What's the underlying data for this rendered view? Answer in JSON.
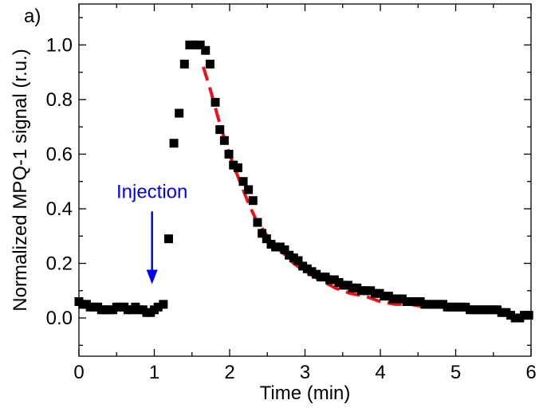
{
  "chart_data": {
    "type": "scatter",
    "panel_label": "a)",
    "xlabel": "Time (min)",
    "ylabel": "Normalized MPQ-1 signal (r.u.)",
    "xlim": [
      0,
      6
    ],
    "ylim": [
      -0.14,
      1.15
    ],
    "xticks": [
      0,
      1,
      2,
      3,
      4,
      5,
      6
    ],
    "xtick_labels": [
      "0",
      "1",
      "2",
      "3",
      "4",
      "5",
      "6"
    ],
    "yticks": [
      0.0,
      0.2,
      0.4,
      0.6,
      0.8,
      1.0
    ],
    "ytick_labels": [
      "0.0",
      "0.2",
      "0.4",
      "0.6",
      "0.8",
      "1.0"
    ],
    "grid": false,
    "series": [
      {
        "kind": "markers",
        "marker": "square",
        "color": "#000000",
        "x": [
          0.0,
          0.05,
          0.1,
          0.15,
          0.2,
          0.25,
          0.3,
          0.35,
          0.4,
          0.45,
          0.5,
          0.55,
          0.6,
          0.65,
          0.7,
          0.75,
          0.8,
          0.85,
          0.9,
          0.95,
          1.0,
          1.05,
          1.12,
          1.19,
          1.26,
          1.33,
          1.4,
          1.47,
          1.54,
          1.61,
          1.68,
          1.74,
          1.81,
          1.87,
          1.93,
          1.99,
          2.05,
          2.11,
          2.18,
          2.25,
          2.31,
          2.37,
          2.43,
          2.49,
          2.55,
          2.61,
          2.67,
          2.73,
          2.79,
          2.85,
          2.91,
          2.97,
          3.03,
          3.09,
          3.15,
          3.21,
          3.27,
          3.33,
          3.39,
          3.45,
          3.51,
          3.57,
          3.63,
          3.69,
          3.75,
          3.81,
          3.87,
          3.93,
          3.99,
          4.05,
          4.11,
          4.17,
          4.23,
          4.29,
          4.35,
          4.41,
          4.47,
          4.53,
          4.59,
          4.65,
          4.71,
          4.77,
          4.83,
          4.89,
          4.95,
          5.01,
          5.07,
          5.13,
          5.19,
          5.25,
          5.31,
          5.37,
          5.43,
          5.49,
          5.55,
          5.61,
          5.67,
          5.73,
          5.79,
          5.85,
          5.91,
          5.97
        ],
        "y": [
          0.06,
          0.05,
          0.05,
          0.04,
          0.04,
          0.04,
          0.03,
          0.03,
          0.03,
          0.03,
          0.04,
          0.04,
          0.04,
          0.03,
          0.03,
          0.04,
          0.03,
          0.03,
          0.02,
          0.02,
          0.03,
          0.04,
          0.05,
          0.29,
          0.64,
          0.75,
          0.93,
          1.0,
          1.0,
          1.0,
          0.98,
          0.93,
          0.79,
          0.69,
          0.65,
          0.6,
          0.56,
          0.55,
          0.5,
          0.47,
          0.43,
          0.35,
          0.31,
          0.29,
          0.27,
          0.26,
          0.26,
          0.25,
          0.23,
          0.22,
          0.21,
          0.19,
          0.18,
          0.17,
          0.16,
          0.15,
          0.15,
          0.14,
          0.14,
          0.13,
          0.12,
          0.12,
          0.11,
          0.11,
          0.1,
          0.1,
          0.1,
          0.09,
          0.09,
          0.08,
          0.08,
          0.07,
          0.07,
          0.07,
          0.06,
          0.06,
          0.06,
          0.06,
          0.05,
          0.05,
          0.05,
          0.05,
          0.05,
          0.04,
          0.04,
          0.04,
          0.04,
          0.04,
          0.03,
          0.03,
          0.03,
          0.03,
          0.03,
          0.03,
          0.03,
          0.02,
          0.02,
          0.01,
          0.0,
          0.0,
          0.01,
          0.01
        ]
      },
      {
        "kind": "fit",
        "style": "dashed",
        "color": "#e8141b",
        "x": [
          1.65,
          1.75,
          1.85,
          1.95,
          2.05,
          2.15,
          2.25,
          2.35,
          2.45,
          2.55,
          2.7,
          2.85,
          3.0,
          3.2,
          3.4,
          3.6,
          3.8,
          4.0,
          4.2,
          4.4,
          4.6,
          4.8,
          5.0,
          5.2,
          5.4,
          5.6,
          5.75
        ],
        "y": [
          0.92,
          0.83,
          0.73,
          0.64,
          0.56,
          0.49,
          0.42,
          0.36,
          0.32,
          0.28,
          0.24,
          0.2,
          0.17,
          0.14,
          0.11,
          0.09,
          0.08,
          0.06,
          0.05,
          0.05,
          0.04,
          0.04,
          0.03,
          0.03,
          0.03,
          0.02,
          0.02
        ]
      }
    ],
    "annotation": {
      "text": "Injection",
      "color": "#0000ee",
      "arrow_x": 0.97,
      "arrow_y_from": 0.39,
      "arrow_y_to": 0.13,
      "text_anchor_x": 0.97,
      "text_anchor_y": 0.44
    }
  }
}
